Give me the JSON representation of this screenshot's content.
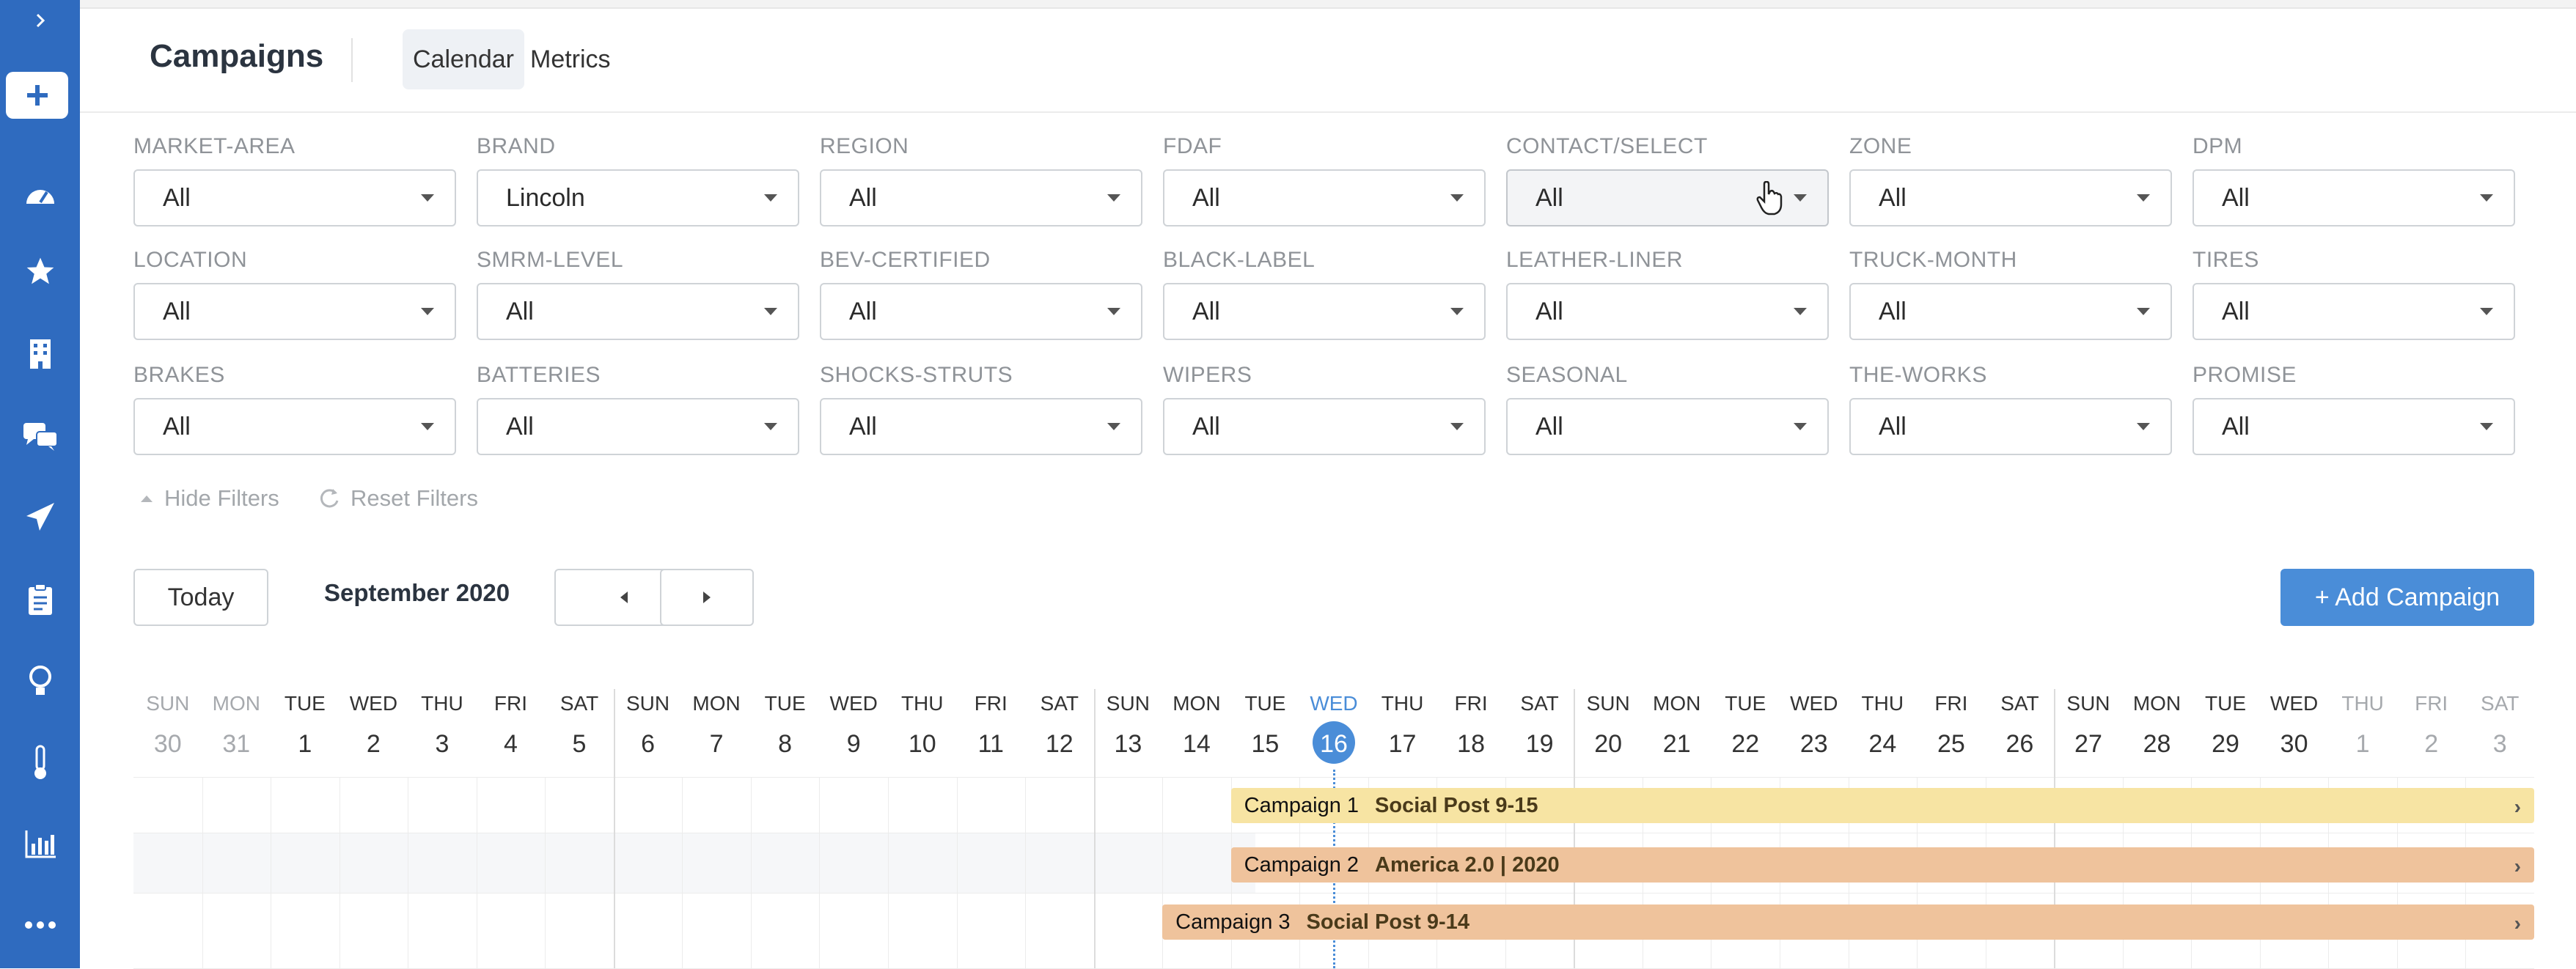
{
  "header": {
    "title": "Campaigns",
    "tabs": [
      {
        "label": "Calendar",
        "active": true
      },
      {
        "label": "Metrics",
        "active": false
      }
    ]
  },
  "sidebar": {
    "items": [
      {
        "icon": "chevron-right-icon"
      },
      {
        "icon": "plus-icon"
      },
      {
        "icon": "dashboard-gauge-icon"
      },
      {
        "icon": "star-icon"
      },
      {
        "icon": "building-icon"
      },
      {
        "icon": "chat-icon"
      },
      {
        "icon": "paper-plane-icon"
      },
      {
        "icon": "clipboard-icon"
      },
      {
        "icon": "lightbulb-icon"
      },
      {
        "icon": "thermometer-icon"
      },
      {
        "icon": "bar-chart-icon"
      },
      {
        "icon": "more-dots-icon"
      }
    ]
  },
  "filters": [
    {
      "label": "MARKET-AREA",
      "value": "All"
    },
    {
      "label": "BRAND",
      "value": "Lincoln"
    },
    {
      "label": "REGION",
      "value": "All"
    },
    {
      "label": "FDAF",
      "value": "All"
    },
    {
      "label": "CONTACT/SELECT",
      "value": "All"
    },
    {
      "label": "ZONE",
      "value": "All"
    },
    {
      "label": "DPM",
      "value": "All"
    },
    {
      "label": "LOCATION",
      "value": "All"
    },
    {
      "label": "SMRM-LEVEL",
      "value": "All"
    },
    {
      "label": "BEV-CERTIFIED",
      "value": "All"
    },
    {
      "label": "BLACK-LABEL",
      "value": "All"
    },
    {
      "label": "LEATHER-LINER",
      "value": "All"
    },
    {
      "label": "TRUCK-MONTH",
      "value": "All"
    },
    {
      "label": "TIRES",
      "value": "All"
    },
    {
      "label": "BRAKES",
      "value": "All"
    },
    {
      "label": "BATTERIES",
      "value": "All"
    },
    {
      "label": "SHOCKS-STRUTS",
      "value": "All"
    },
    {
      "label": "WIPERS",
      "value": "All"
    },
    {
      "label": "SEASONAL",
      "value": "All"
    },
    {
      "label": "THE-WORKS",
      "value": "All"
    },
    {
      "label": "PROMISE",
      "value": "All"
    }
  ],
  "filter_actions": {
    "hide": "Hide Filters",
    "reset": "Reset Filters"
  },
  "toolbar": {
    "today": "Today",
    "month": "September 2020",
    "add_campaign": "+ Add Campaign"
  },
  "calendar": {
    "days": [
      {
        "dow": "SUN",
        "num": "30",
        "muted": true
      },
      {
        "dow": "MON",
        "num": "31",
        "muted": true
      },
      {
        "dow": "TUE",
        "num": "1"
      },
      {
        "dow": "WED",
        "num": "2"
      },
      {
        "dow": "THU",
        "num": "3"
      },
      {
        "dow": "FRI",
        "num": "4"
      },
      {
        "dow": "SAT",
        "num": "5"
      },
      {
        "dow": "SUN",
        "num": "6"
      },
      {
        "dow": "MON",
        "num": "7"
      },
      {
        "dow": "TUE",
        "num": "8"
      },
      {
        "dow": "WED",
        "num": "9"
      },
      {
        "dow": "THU",
        "num": "10"
      },
      {
        "dow": "FRI",
        "num": "11"
      },
      {
        "dow": "SAT",
        "num": "12"
      },
      {
        "dow": "SUN",
        "num": "13"
      },
      {
        "dow": "MON",
        "num": "14"
      },
      {
        "dow": "TUE",
        "num": "15"
      },
      {
        "dow": "WED",
        "num": "16",
        "today": true
      },
      {
        "dow": "THU",
        "num": "17"
      },
      {
        "dow": "FRI",
        "num": "18"
      },
      {
        "dow": "SAT",
        "num": "19"
      },
      {
        "dow": "SUN",
        "num": "20"
      },
      {
        "dow": "MON",
        "num": "21"
      },
      {
        "dow": "TUE",
        "num": "22"
      },
      {
        "dow": "WED",
        "num": "23"
      },
      {
        "dow": "THU",
        "num": "24"
      },
      {
        "dow": "FRI",
        "num": "25"
      },
      {
        "dow": "SAT",
        "num": "26"
      },
      {
        "dow": "SUN",
        "num": "27"
      },
      {
        "dow": "MON",
        "num": "28"
      },
      {
        "dow": "TUE",
        "num": "29"
      },
      {
        "dow": "WED",
        "num": "30"
      },
      {
        "dow": "THU",
        "num": "1",
        "muted": true
      },
      {
        "dow": "FRI",
        "num": "2",
        "muted": true
      },
      {
        "dow": "SAT",
        "num": "3",
        "muted": true
      }
    ],
    "campaigns": [
      {
        "name": "Campaign 1",
        "title": "Social Post 9-15",
        "start_day": "15",
        "color": "#f7e4a3"
      },
      {
        "name": "Campaign 2",
        "title": "America 2.0 | 2020",
        "start_day": "15",
        "color": "#efc39c"
      },
      {
        "name": "Campaign 3",
        "title": "Social Post 9-14",
        "start_day": "14",
        "color": "#efc39c"
      }
    ]
  },
  "colors": {
    "sidebar": "#2f6bbf",
    "accent": "#4a8dd8"
  }
}
